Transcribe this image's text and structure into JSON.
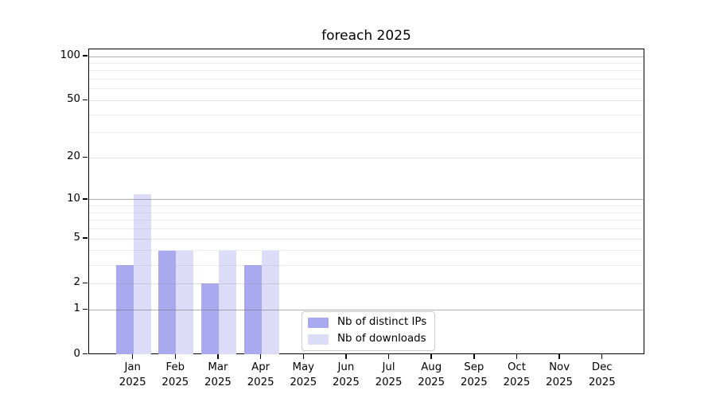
{
  "title": "foreach 2025",
  "chart_data": {
    "type": "bar",
    "title": "foreach 2025",
    "categories": [
      "Jan",
      "Feb",
      "Mar",
      "Apr",
      "May",
      "Jun",
      "Jul",
      "Aug",
      "Sep",
      "Oct",
      "Nov",
      "Dec"
    ],
    "category_year": "2025",
    "series": [
      {
        "name": "Nb of distinct IPs",
        "color": "#a9a9f0",
        "values": [
          3,
          4,
          2,
          3,
          0,
          0,
          0,
          0,
          0,
          0,
          0,
          0
        ]
      },
      {
        "name": "Nb of downloads",
        "color": "#dcdcf9",
        "values": [
          11,
          4,
          4,
          4,
          0,
          0,
          0,
          0,
          0,
          0,
          0,
          0
        ]
      }
    ],
    "yscale": "log10(value+1)",
    "ylim": [
      0,
      113
    ],
    "ytick_values": [
      0,
      1,
      2,
      5,
      10,
      20,
      50,
      100
    ],
    "ytick_labels": [
      "0",
      "1",
      "2",
      "5",
      "10",
      "20",
      "50",
      "100"
    ],
    "emphasized_grid_values": [
      1,
      10,
      100
    ],
    "labeled_grid_values": [
      2,
      5,
      20,
      50
    ],
    "minor_grid_values": [
      3,
      4,
      6,
      7,
      8,
      9,
      30,
      40,
      60,
      70,
      80,
      90
    ],
    "grid": true,
    "legend_position": "lower center"
  },
  "colors": {
    "background": "#ffffff",
    "axis": "#000000",
    "text": "#000000",
    "grid_emphasized": "#c0c0c0",
    "grid_minor": "#ececec",
    "bar_distinct_ips": "#a9a9f0",
    "bar_downloads": "#dcdcf9",
    "legend_border": "#cccccc"
  }
}
